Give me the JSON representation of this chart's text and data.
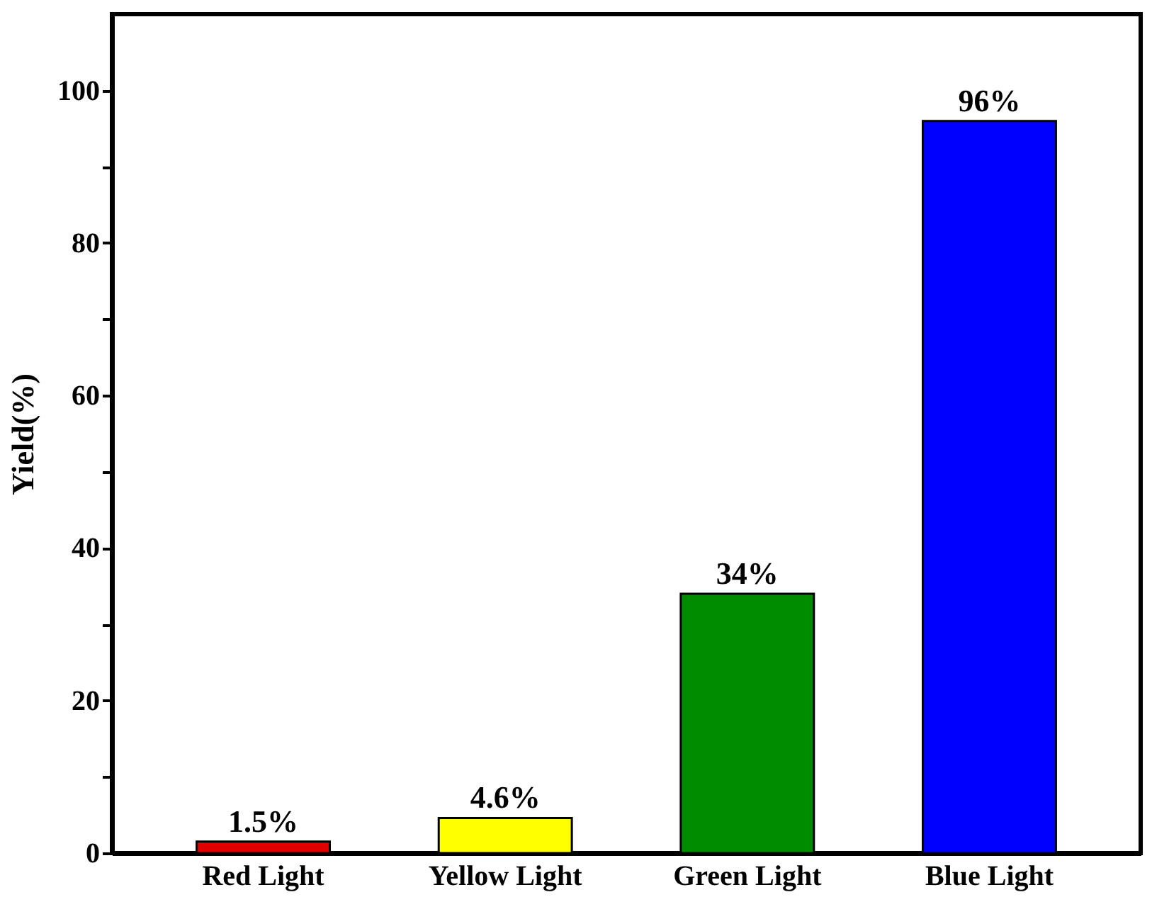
{
  "chart_data": {
    "type": "bar",
    "ylabel": "Yield(%)",
    "categories": [
      "Red Light",
      "Yellow Light",
      "Green Light",
      "Blue Light"
    ],
    "values": [
      1.5,
      4.6,
      34,
      96
    ],
    "colors": [
      "#e00000",
      "#ffff00",
      "#008c00",
      "#0000ff"
    ],
    "value_labels": [
      "1.5%",
      "4.6%",
      "34%",
      "96%"
    ],
    "ylim": [
      0,
      110
    ],
    "yticks": [
      0,
      {
        "value": 10,
        "label": null
      },
      20,
      {
        "value": 30,
        "label": null
      },
      40,
      {
        "value": 50,
        "label": null
      },
      60,
      {
        "value": 70,
        "label": null
      },
      80,
      {
        "value": 90,
        "label": null
      },
      100
    ],
    "grid": false
  }
}
